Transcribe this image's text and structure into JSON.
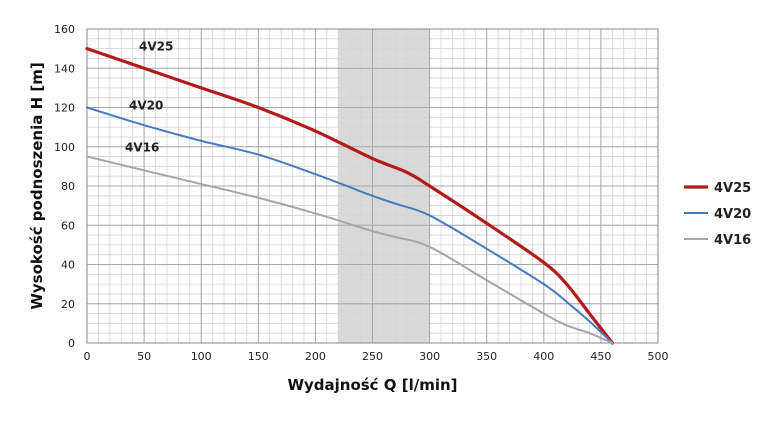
{
  "chart_data": {
    "type": "line",
    "title": "",
    "xlabel": "Wydajność Q [l/min]",
    "ylabel": "Wysokość podnoszenia H [m]",
    "xlim": [
      0,
      500
    ],
    "ylim": [
      0,
      160
    ],
    "x_ticks": [
      0,
      50,
      100,
      150,
      200,
      250,
      300,
      350,
      400,
      450,
      500
    ],
    "y_ticks": [
      0,
      20,
      40,
      60,
      80,
      100,
      120,
      140,
      160
    ],
    "grid": true,
    "highlight_band": {
      "x_from": 220,
      "x_to": 300,
      "color": "#d9d9d9"
    },
    "legend_position": "right",
    "series": [
      {
        "name": "4V25",
        "color": "#b31b1b",
        "x": [
          0,
          50,
          100,
          150,
          200,
          250,
          280,
          300,
          350,
          400,
          420,
          440,
          460
        ],
        "y": [
          150,
          140,
          130,
          120,
          108,
          94,
          87,
          80,
          61,
          41,
          30,
          15,
          0
        ]
      },
      {
        "name": "4V20",
        "color": "#4a7abf",
        "x": [
          0,
          50,
          100,
          150,
          200,
          250,
          270,
          300,
          350,
          400,
          420,
          440,
          460
        ],
        "y": [
          120,
          111,
          103,
          96,
          86,
          75,
          71,
          65,
          48,
          30,
          21,
          11,
          0
        ]
      },
      {
        "name": "4V16",
        "color": "#a6a6a6",
        "x": [
          0,
          50,
          100,
          150,
          200,
          250,
          270,
          300,
          350,
          400,
          420,
          440,
          460
        ],
        "y": [
          95,
          88,
          81,
          74,
          66,
          57,
          54,
          49,
          32,
          15,
          9,
          5,
          0
        ]
      }
    ]
  }
}
